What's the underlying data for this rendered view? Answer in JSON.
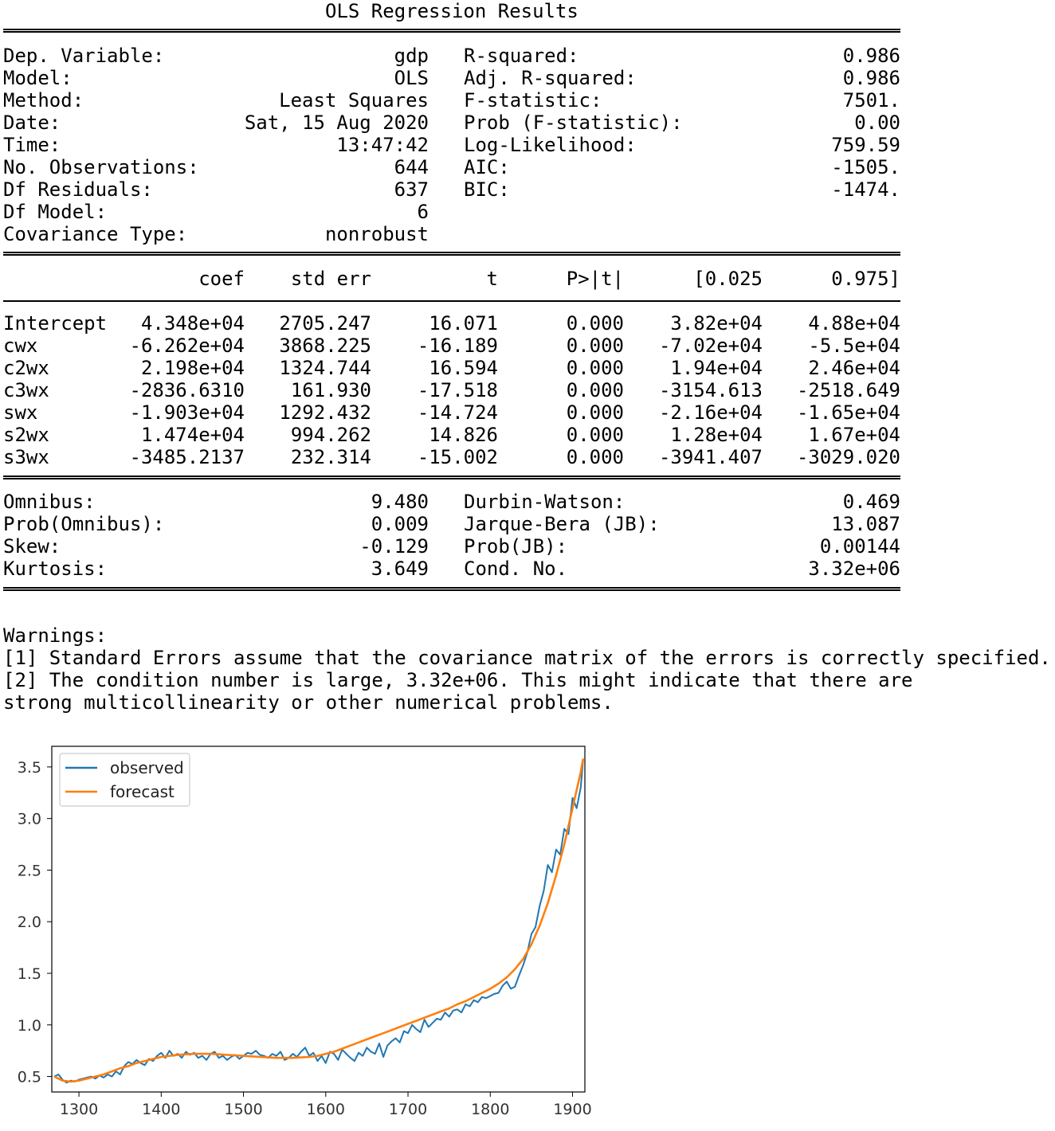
{
  "summary": {
    "title": "OLS Regression Results",
    "top_left": [
      {
        "label": "Dep. Variable:",
        "value": "gdp"
      },
      {
        "label": "Model:",
        "value": "OLS"
      },
      {
        "label": "Method:",
        "value": "Least Squares"
      },
      {
        "label": "Date:",
        "value": "Sat, 15 Aug 2020"
      },
      {
        "label": "Time:",
        "value": "13:47:42"
      },
      {
        "label": "No. Observations:",
        "value": "644"
      },
      {
        "label": "Df Residuals:",
        "value": "637"
      },
      {
        "label": "Df Model:",
        "value": "6"
      },
      {
        "label": "Covariance Type:",
        "value": "nonrobust"
      }
    ],
    "top_right": [
      {
        "label": "R-squared:",
        "value": "0.986"
      },
      {
        "label": "Adj. R-squared:",
        "value": "0.986"
      },
      {
        "label": "F-statistic:",
        "value": "7501."
      },
      {
        "label": "Prob (F-statistic):",
        "value": "0.00"
      },
      {
        "label": "Log-Likelihood:",
        "value": "759.59"
      },
      {
        "label": "AIC:",
        "value": "-1505."
      },
      {
        "label": "BIC:",
        "value": "-1474."
      }
    ],
    "coef_headers": [
      "coef",
      "std err",
      "t",
      "P>|t|",
      "[0.025",
      "0.975]"
    ],
    "coef_rows": [
      {
        "name": "Intercept",
        "cells": [
          "4.348e+04",
          "2705.247",
          "16.071",
          "0.000",
          "3.82e+04",
          "4.88e+04"
        ]
      },
      {
        "name": "cwx",
        "cells": [
          "-6.262e+04",
          "3868.225",
          "-16.189",
          "0.000",
          "-7.02e+04",
          "-5.5e+04"
        ]
      },
      {
        "name": "c2wx",
        "cells": [
          "2.198e+04",
          "1324.744",
          "16.594",
          "0.000",
          "1.94e+04",
          "2.46e+04"
        ]
      },
      {
        "name": "c3wx",
        "cells": [
          "-2836.6310",
          "161.930",
          "-17.518",
          "0.000",
          "-3154.613",
          "-2518.649"
        ]
      },
      {
        "name": "swx",
        "cells": [
          "-1.903e+04",
          "1292.432",
          "-14.724",
          "0.000",
          "-2.16e+04",
          "-1.65e+04"
        ]
      },
      {
        "name": "s2wx",
        "cells": [
          "1.474e+04",
          "994.262",
          "14.826",
          "0.000",
          "1.28e+04",
          "1.67e+04"
        ]
      },
      {
        "name": "s3wx",
        "cells": [
          "-3485.2137",
          "232.314",
          "-15.002",
          "0.000",
          "-3941.407",
          "-3029.020"
        ]
      }
    ],
    "bottom_left": [
      {
        "label": "Omnibus:",
        "value": "9.480"
      },
      {
        "label": "Prob(Omnibus):",
        "value": "0.009"
      },
      {
        "label": "Skew:",
        "value": "-0.129"
      },
      {
        "label": "Kurtosis:",
        "value": "3.649"
      }
    ],
    "bottom_right": [
      {
        "label": "Durbin-Watson:",
        "value": "0.469"
      },
      {
        "label": "Jarque-Bera (JB):",
        "value": "13.087"
      },
      {
        "label": "Prob(JB):",
        "value": "0.00144"
      },
      {
        "label": "Cond. No.",
        "value": "3.32e+06"
      }
    ]
  },
  "warnings": [
    "Warnings:",
    "[1] Standard Errors assume that the covariance matrix of the errors is correctly specified.",
    "[2] The condition number is large, 3.32e+06. This might indicate that there are",
    "strong multicollinearity or other numerical problems."
  ],
  "chart_data": {
    "type": "line",
    "title": "",
    "xlabel": "",
    "ylabel": "",
    "xlim": [
      1267,
      1915
    ],
    "ylim": [
      0.35,
      3.7
    ],
    "x_ticks": [
      1300,
      1400,
      1500,
      1600,
      1700,
      1800,
      1900
    ],
    "y_ticks": [
      "0.5",
      "1.0",
      "1.5",
      "2.0",
      "2.5",
      "3.0",
      "3.5"
    ],
    "legend_position": "top-left",
    "grid": false,
    "colors": {
      "observed": "#1f77b4",
      "forecast": "#ff7f0e"
    },
    "series": [
      {
        "name": "observed",
        "x": [
          1270,
          1275,
          1280,
          1285,
          1290,
          1295,
          1300,
          1305,
          1310,
          1315,
          1320,
          1325,
          1330,
          1335,
          1340,
          1345,
          1350,
          1355,
          1360,
          1365,
          1370,
          1375,
          1380,
          1385,
          1390,
          1395,
          1400,
          1405,
          1410,
          1415,
          1420,
          1425,
          1430,
          1435,
          1440,
          1445,
          1450,
          1455,
          1460,
          1465,
          1470,
          1475,
          1480,
          1485,
          1490,
          1495,
          1500,
          1505,
          1510,
          1515,
          1520,
          1525,
          1530,
          1535,
          1540,
          1545,
          1550,
          1555,
          1560,
          1565,
          1570,
          1575,
          1580,
          1585,
          1590,
          1595,
          1600,
          1605,
          1610,
          1615,
          1620,
          1625,
          1630,
          1635,
          1640,
          1645,
          1650,
          1655,
          1660,
          1665,
          1670,
          1675,
          1680,
          1685,
          1690,
          1695,
          1700,
          1705,
          1710,
          1715,
          1720,
          1725,
          1730,
          1735,
          1740,
          1745,
          1750,
          1755,
          1760,
          1765,
          1770,
          1775,
          1780,
          1785,
          1790,
          1795,
          1800,
          1805,
          1810,
          1815,
          1820,
          1825,
          1830,
          1835,
          1840,
          1845,
          1850,
          1855,
          1860,
          1865,
          1870,
          1875,
          1880,
          1885,
          1890,
          1895,
          1900,
          1905,
          1910,
          1913
        ],
        "values": [
          0.5,
          0.52,
          0.47,
          0.44,
          0.46,
          0.45,
          0.47,
          0.48,
          0.49,
          0.5,
          0.48,
          0.51,
          0.49,
          0.52,
          0.5,
          0.55,
          0.52,
          0.6,
          0.64,
          0.62,
          0.66,
          0.63,
          0.61,
          0.67,
          0.65,
          0.7,
          0.73,
          0.68,
          0.75,
          0.7,
          0.72,
          0.68,
          0.74,
          0.71,
          0.73,
          0.68,
          0.7,
          0.66,
          0.72,
          0.74,
          0.68,
          0.7,
          0.66,
          0.69,
          0.71,
          0.67,
          0.7,
          0.73,
          0.72,
          0.75,
          0.71,
          0.7,
          0.68,
          0.72,
          0.7,
          0.74,
          0.66,
          0.68,
          0.72,
          0.69,
          0.74,
          0.78,
          0.7,
          0.73,
          0.65,
          0.7,
          0.63,
          0.74,
          0.72,
          0.66,
          0.76,
          0.72,
          0.68,
          0.65,
          0.73,
          0.7,
          0.78,
          0.74,
          0.72,
          0.82,
          0.69,
          0.8,
          0.84,
          0.87,
          0.83,
          0.94,
          0.92,
          1.0,
          0.96,
          0.93,
          1.05,
          0.98,
          1.02,
          1.06,
          1.05,
          1.12,
          1.08,
          1.14,
          1.15,
          1.12,
          1.2,
          1.18,
          1.24,
          1.22,
          1.27,
          1.26,
          1.28,
          1.3,
          1.31,
          1.38,
          1.42,
          1.35,
          1.37,
          1.48,
          1.58,
          1.7,
          1.88,
          1.95,
          2.15,
          2.3,
          2.55,
          2.48,
          2.7,
          2.65,
          2.9,
          2.85,
          3.2,
          3.1,
          3.3,
          3.58
        ]
      },
      {
        "name": "forecast",
        "x": [
          1270,
          1280,
          1290,
          1300,
          1310,
          1320,
          1330,
          1340,
          1350,
          1360,
          1370,
          1380,
          1390,
          1400,
          1410,
          1420,
          1430,
          1440,
          1450,
          1460,
          1470,
          1480,
          1490,
          1500,
          1510,
          1520,
          1530,
          1540,
          1550,
          1560,
          1570,
          1580,
          1590,
          1600,
          1610,
          1620,
          1630,
          1640,
          1650,
          1660,
          1670,
          1680,
          1690,
          1700,
          1710,
          1720,
          1730,
          1740,
          1750,
          1760,
          1770,
          1780,
          1790,
          1800,
          1810,
          1820,
          1830,
          1840,
          1850,
          1860,
          1870,
          1880,
          1890,
          1900,
          1910,
          1913
        ],
        "values": [
          0.5,
          0.46,
          0.45,
          0.46,
          0.48,
          0.5,
          0.52,
          0.55,
          0.58,
          0.6,
          0.63,
          0.65,
          0.67,
          0.69,
          0.7,
          0.71,
          0.715,
          0.72,
          0.72,
          0.72,
          0.715,
          0.71,
          0.705,
          0.7,
          0.695,
          0.69,
          0.685,
          0.68,
          0.68,
          0.68,
          0.685,
          0.69,
          0.7,
          0.72,
          0.74,
          0.77,
          0.8,
          0.83,
          0.86,
          0.89,
          0.92,
          0.95,
          0.98,
          1.01,
          1.04,
          1.07,
          1.1,
          1.13,
          1.16,
          1.2,
          1.23,
          1.27,
          1.31,
          1.35,
          1.4,
          1.46,
          1.54,
          1.64,
          1.78,
          1.96,
          2.18,
          2.45,
          2.75,
          3.1,
          3.45,
          3.58
        ]
      }
    ]
  }
}
